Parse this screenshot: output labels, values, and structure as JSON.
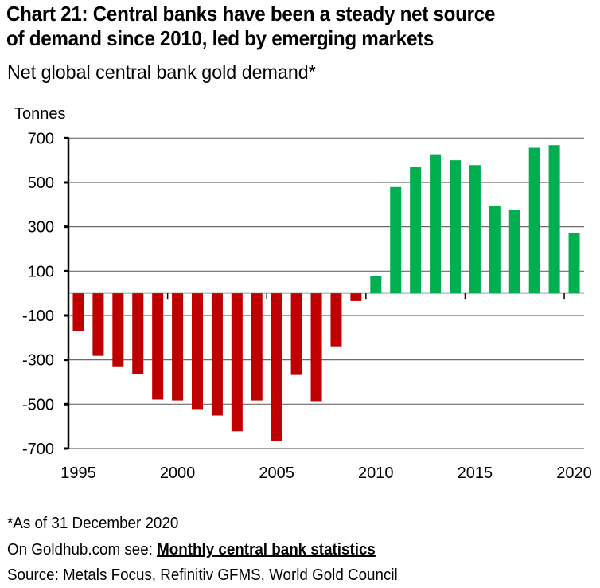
{
  "header": {
    "title_line1": "Chart 21: Central banks have been a steady net source",
    "title_line2": "of demand since 2010, led by emerging markets",
    "subtitle": "Net global central bank gold demand*"
  },
  "footer": {
    "note": "*As of 31 December 2020",
    "goldhub_prefix": "On Goldhub.com see: ",
    "goldhub_link": "Monthly central bank statistics",
    "source": "Source: Metals Focus, Refinitiv GFMS, World Gold Council"
  },
  "colors": {
    "negative": "#C00000",
    "positive": "#00B050",
    "grid": "#6b6b6b"
  },
  "chart_data": {
    "type": "bar",
    "title": "Chart 21: Central banks have been a steady net source of demand since 2010, led by emerging markets",
    "subtitle": "Net global central bank gold demand*",
    "xlabel": "",
    "ylabel": "Tonnes",
    "ylim": [
      -700,
      700
    ],
    "yticks": [
      700,
      500,
      300,
      100,
      -100,
      -300,
      -500,
      -700
    ],
    "xtick_labels": [
      "1995",
      "2000",
      "2005",
      "2010",
      "2015",
      "2020"
    ],
    "grid": true,
    "legend": "none",
    "categories": [
      "1995",
      "1996",
      "1997",
      "1998",
      "1999",
      "2000",
      "2001",
      "2002",
      "2003",
      "2004",
      "2005",
      "2006",
      "2007",
      "2008",
      "2009",
      "2010",
      "2011",
      "2012",
      "2013",
      "2014",
      "2015",
      "2016",
      "2017",
      "2018",
      "2019",
      "2020"
    ],
    "values": [
      -171,
      -282,
      -329,
      -365,
      -479,
      -483,
      -522,
      -551,
      -622,
      -483,
      -665,
      -368,
      -486,
      -239,
      -35,
      77,
      479,
      568,
      627,
      600,
      578,
      394,
      377,
      656,
      668,
      271
    ]
  }
}
